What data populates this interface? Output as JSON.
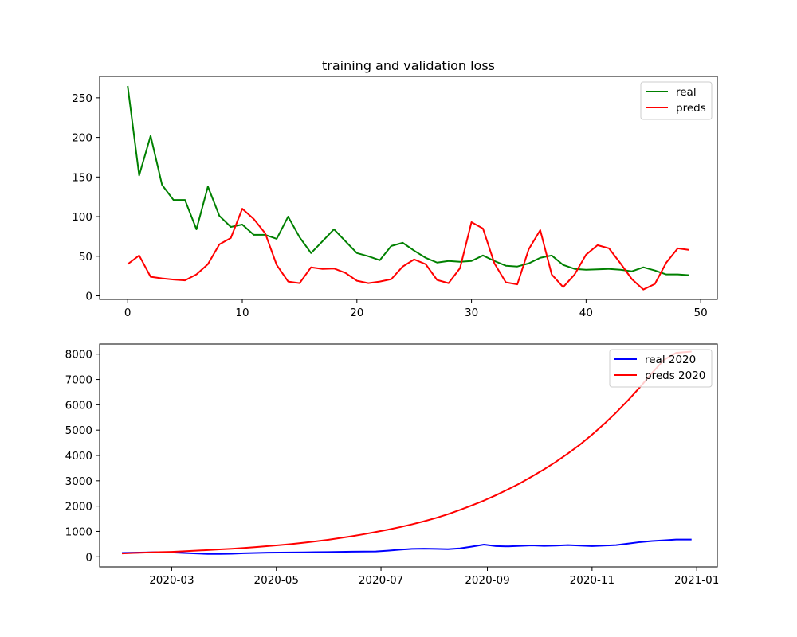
{
  "colors": {
    "real_loss": "#008000",
    "preds_loss": "#ff0000",
    "real_2020": "#0000ff",
    "preds_2020": "#ff0000",
    "axes": "#000000",
    "background": "#ffffff"
  },
  "chart_data": [
    {
      "type": "line",
      "title": "training and validation loss",
      "xlabel": "",
      "ylabel": "",
      "xlim": [
        -2.45,
        51.45
      ],
      "ylim": [
        -4.5,
        277
      ],
      "xticks": [
        0,
        10,
        20,
        30,
        40,
        50
      ],
      "yticks": [
        0,
        50,
        100,
        150,
        200,
        250
      ],
      "grid": false,
      "legend_position": "upper right",
      "x": [
        0,
        1,
        2,
        3,
        4,
        5,
        6,
        7,
        8,
        9,
        10,
        11,
        12,
        13,
        14,
        15,
        16,
        17,
        18,
        19,
        20,
        21,
        22,
        23,
        24,
        25,
        26,
        27,
        28,
        29,
        30,
        31,
        32,
        33,
        34,
        35,
        36,
        37,
        38,
        39,
        40,
        41,
        42,
        43,
        44,
        45,
        46,
        47,
        48,
        49
      ],
      "series": [
        {
          "name": "real",
          "color": "#008000",
          "values": [
            265,
            152,
            202,
            140,
            121,
            121,
            84,
            138,
            101,
            87,
            90,
            77,
            77,
            72,
            100,
            74,
            54,
            69,
            84,
            69,
            54,
            50,
            45,
            63,
            67,
            57,
            48,
            42,
            44,
            43,
            44,
            51,
            44,
            38,
            37,
            41,
            48,
            51,
            39,
            34,
            33,
            33.5,
            34,
            33,
            31,
            36,
            32,
            27,
            27,
            26
          ]
        },
        {
          "name": "preds",
          "color": "#ff0000",
          "values": [
            40,
            51,
            24,
            22,
            20.5,
            19.5,
            27,
            40,
            65,
            73,
            110,
            97,
            79,
            39,
            18,
            16,
            36,
            34,
            34.5,
            29,
            19,
            16,
            18,
            21,
            37,
            46,
            40,
            20,
            16,
            35,
            93,
            85,
            41,
            17,
            14.5,
            59,
            83,
            27,
            11,
            27,
            52,
            64,
            60,
            41,
            21,
            8,
            15,
            42,
            60,
            58
          ]
        }
      ]
    },
    {
      "type": "line",
      "title": "",
      "xlabel": "",
      "ylabel": "",
      "x_type": "date",
      "xlim": [
        "2020-01-19",
        "2021-01-13"
      ],
      "ylim": [
        -400,
        8400
      ],
      "xticks": [
        "2020-03",
        "2020-05",
        "2020-07",
        "2020-09",
        "2020-11",
        "2021-01"
      ],
      "yticks": [
        0,
        1000,
        2000,
        3000,
        4000,
        5000,
        6000,
        7000,
        8000
      ],
      "grid": false,
      "legend_position": "upper right",
      "x": [
        "2020-02-01",
        "2020-02-08",
        "2020-02-15",
        "2020-02-22",
        "2020-03-01",
        "2020-03-08",
        "2020-03-15",
        "2020-03-22",
        "2020-03-29",
        "2020-04-05",
        "2020-04-12",
        "2020-04-19",
        "2020-04-26",
        "2020-05-03",
        "2020-05-10",
        "2020-05-17",
        "2020-05-24",
        "2020-05-31",
        "2020-06-07",
        "2020-06-14",
        "2020-06-21",
        "2020-06-28",
        "2020-07-05",
        "2020-07-12",
        "2020-07-19",
        "2020-07-26",
        "2020-08-02",
        "2020-08-09",
        "2020-08-16",
        "2020-08-23",
        "2020-08-30",
        "2020-09-06",
        "2020-09-13",
        "2020-09-20",
        "2020-09-27",
        "2020-10-04",
        "2020-10-11",
        "2020-10-18",
        "2020-10-25",
        "2020-11-01",
        "2020-11-08",
        "2020-11-15",
        "2020-11-22",
        "2020-11-29",
        "2020-12-06",
        "2020-12-13",
        "2020-12-20",
        "2020-12-29"
      ],
      "series": [
        {
          "name": "real 2020",
          "color": "#0000ff",
          "values": [
            150,
            160,
            170,
            180,
            170,
            150,
            130,
            110,
            110,
            120,
            140,
            150,
            160,
            165,
            170,
            175,
            180,
            185,
            195,
            200,
            205,
            210,
            240,
            280,
            310,
            320,
            310,
            300,
            330,
            400,
            480,
            420,
            410,
            430,
            450,
            430,
            440,
            460,
            440,
            420,
            440,
            460,
            520,
            580,
            620,
            650,
            680,
            680
          ]
        },
        {
          "name": "preds 2020",
          "color": "#ff0000",
          "values": [
            130,
            150,
            165,
            180,
            195,
            215,
            240,
            265,
            290,
            315,
            345,
            380,
            420,
            460,
            505,
            555,
            610,
            670,
            740,
            810,
            890,
            980,
            1070,
            1170,
            1280,
            1400,
            1530,
            1680,
            1850,
            2030,
            2220,
            2430,
            2660,
            2900,
            3170,
            3450,
            3750,
            4080,
            4430,
            4820,
            5240,
            5690,
            6180,
            6700,
            7260,
            7780,
            8050,
            8100
          ]
        }
      ]
    }
  ]
}
